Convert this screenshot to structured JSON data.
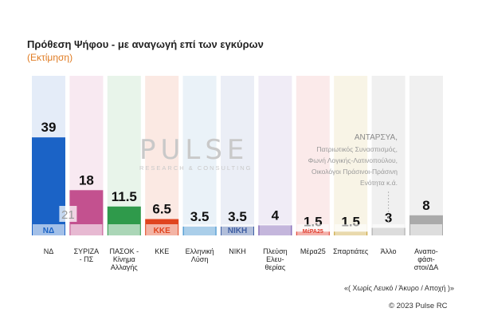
{
  "title": "Πρόθεση Ψήφου - με αναγωγή επί των εγκύρων",
  "subtitle": "(Εκτίμηση)",
  "watermark": {
    "main": "PULSE",
    "sub": "RESEARCH & CONSULTING"
  },
  "other_note": {
    "header": "ΑΝΤΑΡΣΥΑ,",
    "lines": [
      "Πατριωτικός Συνασπισμός,",
      "Φωνή Λογικής-Λατινοπούλου,",
      "Οικολόγοι Πράσινοι-Πράσινη",
      "Ενότητα κ.ά."
    ]
  },
  "footnote": "«( Χωρίς Λευκό / Άκυρο / Αποχή )»",
  "copyright": "© 2023 Pulse RC",
  "chart_data": {
    "type": "bar",
    "categories": [
      "ΝΔ",
      "ΣΥΡΙΖΑ - ΠΣ",
      "ΠΑΣΟΚ - Κίνημα Αλλαγής",
      "ΚΚΕ",
      "Ελληνική Λύση",
      "ΝΙΚΗ",
      "Πλεύση Ελευθερίας",
      "Μέρα25",
      "Σπαρτιάτες",
      "Άλλο",
      "Αναποφάσιστοι/ΔΑ"
    ],
    "category_lines": [
      [
        "ΝΔ"
      ],
      [
        "ΣΥΡΙΖΑ",
        "- ΠΣ"
      ],
      [
        "ΠΑΣΟΚ -",
        "Κίνημα",
        "Αλλαγής"
      ],
      [
        "ΚΚΕ"
      ],
      [
        "Ελληνική",
        "Λύση"
      ],
      [
        "ΝΙΚΗ"
      ],
      [
        "Πλεύση",
        "Ελευ-",
        "θερίας"
      ],
      [
        "Μέρα25"
      ],
      [
        "Σπαρτιάτες"
      ],
      [
        "Άλλο"
      ],
      [
        "Αναπο-",
        "φάσι-",
        "στοι/ΔΑ"
      ]
    ],
    "values": [
      39,
      18,
      11.5,
      6.5,
      3.5,
      3.5,
      4,
      1.5,
      1.5,
      3,
      8
    ],
    "value_labels": [
      "39",
      "18",
      "11.5",
      "6.5",
      "3.5",
      "3.5",
      "4",
      "1.5",
      "1.5",
      "3",
      "8"
    ],
    "colors": [
      "#1b63c6",
      "#c3518f",
      "#2f9a4b",
      "#e0441e",
      "#2c86c9",
      "#3e5ea3",
      "#6b4aa8",
      "#e03a2b",
      "#c8a132",
      "#a7a7a7",
      "#9d9d9d"
    ],
    "background_colors": [
      "#e4ecf8",
      "#f8e9f1",
      "#e8f4ea",
      "#fbe9e3",
      "#eaf2f8",
      "#ebeef6",
      "#f0ecf6",
      "#fbeaea",
      "#f8f4e6",
      "#f0f0f0",
      "#f0f0f0"
    ],
    "logos": [
      "ΝΔ",
      "",
      "",
      "ΚΚΕ",
      "",
      "ΝΙΚΗ",
      "",
      "ΜέΡΑ25",
      "",
      "",
      ""
    ],
    "previous_label": "21",
    "ylim": [
      0,
      50
    ]
  }
}
